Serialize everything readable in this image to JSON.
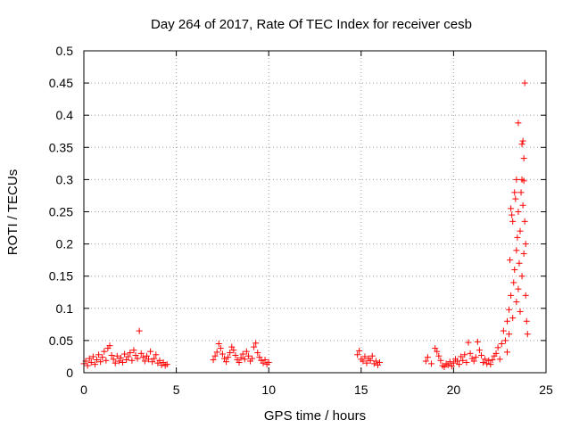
{
  "chart_data": {
    "type": "scatter",
    "title": "Day 264 of 2017, Rate Of TEC Index for receiver cesb",
    "xlabel": "GPS time / hours",
    "ylabel": "ROTI / TECUs",
    "xlim": [
      0,
      25
    ],
    "ylim": [
      0,
      0.5
    ],
    "x_ticks": [
      0,
      5,
      10,
      15,
      20,
      25
    ],
    "y_ticks": [
      0,
      0.05,
      0.1,
      0.15,
      0.2,
      0.25,
      0.3,
      0.35,
      0.4,
      0.45,
      0.5
    ],
    "x_tick_labels": [
      "0",
      "5",
      "10",
      "15",
      "20",
      "25"
    ],
    "y_tick_labels": [
      "0",
      "0.05",
      "0.1",
      "0.15",
      "0.2",
      "0.25",
      "0.3",
      "0.35",
      "0.4",
      "0.45",
      "0.5"
    ],
    "grid": true,
    "marker": "+",
    "color": "#ff0000",
    "series": [
      {
        "name": "ROTI",
        "points": [
          [
            0.0,
            0.014
          ],
          [
            0.1,
            0.018
          ],
          [
            0.2,
            0.011
          ],
          [
            0.3,
            0.022
          ],
          [
            0.4,
            0.016
          ],
          [
            0.5,
            0.025
          ],
          [
            0.6,
            0.013
          ],
          [
            0.7,
            0.02
          ],
          [
            0.8,
            0.028
          ],
          [
            0.9,
            0.017
          ],
          [
            1.0,
            0.024
          ],
          [
            1.1,
            0.033
          ],
          [
            1.2,
            0.019
          ],
          [
            1.3,
            0.038
          ],
          [
            1.4,
            0.042
          ],
          [
            1.5,
            0.027
          ],
          [
            1.6,
            0.021
          ],
          [
            1.7,
            0.015
          ],
          [
            1.8,
            0.026
          ],
          [
            1.9,
            0.018
          ],
          [
            2.0,
            0.023
          ],
          [
            2.1,
            0.016
          ],
          [
            2.2,
            0.029
          ],
          [
            2.3,
            0.02
          ],
          [
            2.4,
            0.025
          ],
          [
            2.5,
            0.031
          ],
          [
            2.6,
            0.019
          ],
          [
            2.7,
            0.035
          ],
          [
            2.8,
            0.027
          ],
          [
            2.9,
            0.022
          ],
          [
            3.0,
            0.065
          ],
          [
            3.1,
            0.03
          ],
          [
            3.2,
            0.024
          ],
          [
            3.3,
            0.018
          ],
          [
            3.4,
            0.026
          ],
          [
            3.5,
            0.021
          ],
          [
            3.6,
            0.033
          ],
          [
            3.7,
            0.017
          ],
          [
            3.8,
            0.022
          ],
          [
            3.9,
            0.028
          ],
          [
            4.0,
            0.015
          ],
          [
            4.1,
            0.019
          ],
          [
            4.2,
            0.012
          ],
          [
            4.3,
            0.016
          ],
          [
            4.4,
            0.011
          ],
          [
            4.5,
            0.013
          ],
          [
            7.0,
            0.02
          ],
          [
            7.1,
            0.026
          ],
          [
            7.2,
            0.032
          ],
          [
            7.3,
            0.045
          ],
          [
            7.4,
            0.038
          ],
          [
            7.5,
            0.029
          ],
          [
            7.6,
            0.022
          ],
          [
            7.7,
            0.017
          ],
          [
            7.8,
            0.024
          ],
          [
            7.9,
            0.031
          ],
          [
            8.0,
            0.04
          ],
          [
            8.1,
            0.035
          ],
          [
            8.2,
            0.027
          ],
          [
            8.3,
            0.02
          ],
          [
            8.4,
            0.016
          ],
          [
            8.5,
            0.023
          ],
          [
            8.6,
            0.029
          ],
          [
            8.7,
            0.021
          ],
          [
            8.8,
            0.033
          ],
          [
            8.9,
            0.026
          ],
          [
            9.0,
            0.018
          ],
          [
            9.1,
            0.022
          ],
          [
            9.2,
            0.04
          ],
          [
            9.3,
            0.046
          ],
          [
            9.4,
            0.031
          ],
          [
            9.5,
            0.024
          ],
          [
            9.6,
            0.019
          ],
          [
            9.7,
            0.015
          ],
          [
            9.8,
            0.02
          ],
          [
            9.9,
            0.013
          ],
          [
            10.0,
            0.016
          ],
          [
            14.8,
            0.028
          ],
          [
            14.9,
            0.034
          ],
          [
            15.0,
            0.021
          ],
          [
            15.1,
            0.018
          ],
          [
            15.2,
            0.025
          ],
          [
            15.3,
            0.015
          ],
          [
            15.4,
            0.022
          ],
          [
            15.5,
            0.019
          ],
          [
            15.6,
            0.026
          ],
          [
            15.7,
            0.014
          ],
          [
            15.8,
            0.018
          ],
          [
            15.9,
            0.012
          ],
          [
            16.0,
            0.016
          ],
          [
            18.5,
            0.018
          ],
          [
            18.6,
            0.024
          ],
          [
            18.8,
            0.014
          ],
          [
            19.0,
            0.038
          ],
          [
            19.1,
            0.033
          ],
          [
            19.2,
            0.026
          ],
          [
            19.3,
            0.019
          ],
          [
            19.4,
            0.011
          ],
          [
            19.5,
            0.009
          ],
          [
            19.6,
            0.014
          ],
          [
            19.7,
            0.012
          ],
          [
            19.8,
            0.017
          ],
          [
            19.9,
            0.01
          ],
          [
            20.0,
            0.015
          ],
          [
            20.1,
            0.021
          ],
          [
            20.2,
            0.018
          ],
          [
            20.3,
            0.013
          ],
          [
            20.4,
            0.025
          ],
          [
            20.5,
            0.019
          ],
          [
            20.6,
            0.028
          ],
          [
            20.7,
            0.016
          ],
          [
            20.8,
            0.047
          ],
          [
            20.9,
            0.03
          ],
          [
            21.0,
            0.022
          ],
          [
            21.1,
            0.018
          ],
          [
            21.2,
            0.024
          ],
          [
            21.3,
            0.048
          ],
          [
            21.4,
            0.035
          ],
          [
            21.5,
            0.027
          ],
          [
            21.6,
            0.016
          ],
          [
            21.7,
            0.021
          ],
          [
            21.8,
            0.014
          ],
          [
            21.9,
            0.019
          ],
          [
            22.0,
            0.013
          ],
          [
            22.1,
            0.02
          ],
          [
            22.2,
            0.026
          ],
          [
            22.3,
            0.03
          ],
          [
            22.4,
            0.039
          ],
          [
            22.5,
            0.021
          ],
          [
            22.6,
            0.045
          ],
          [
            22.7,
            0.065
          ],
          [
            22.8,
            0.05
          ],
          [
            22.9,
            0.032
          ],
          [
            22.9,
            0.08
          ],
          [
            23.0,
            0.098
          ],
          [
            23.0,
            0.06
          ],
          [
            23.05,
            0.175
          ],
          [
            23.1,
            0.255
          ],
          [
            23.1,
            0.12
          ],
          [
            23.15,
            0.245
          ],
          [
            23.2,
            0.235
          ],
          [
            23.2,
            0.085
          ],
          [
            23.25,
            0.14
          ],
          [
            23.3,
            0.28
          ],
          [
            23.3,
            0.16
          ],
          [
            23.35,
            0.27
          ],
          [
            23.4,
            0.3
          ],
          [
            23.4,
            0.19
          ],
          [
            23.4,
            0.11
          ],
          [
            23.45,
            0.21
          ],
          [
            23.5,
            0.388
          ],
          [
            23.5,
            0.25
          ],
          [
            23.5,
            0.13
          ],
          [
            23.55,
            0.17
          ],
          [
            23.6,
            0.22
          ],
          [
            23.6,
            0.095
          ],
          [
            23.65,
            0.28
          ],
          [
            23.7,
            0.355
          ],
          [
            23.7,
            0.3
          ],
          [
            23.7,
            0.15
          ],
          [
            23.75,
            0.36
          ],
          [
            23.75,
            0.26
          ],
          [
            23.8,
            0.333
          ],
          [
            23.8,
            0.298
          ],
          [
            23.8,
            0.185
          ],
          [
            23.85,
            0.45
          ],
          [
            23.85,
            0.235
          ],
          [
            23.9,
            0.2
          ],
          [
            23.9,
            0.12
          ],
          [
            23.95,
            0.08
          ],
          [
            24.0,
            0.06
          ]
        ]
      }
    ]
  }
}
